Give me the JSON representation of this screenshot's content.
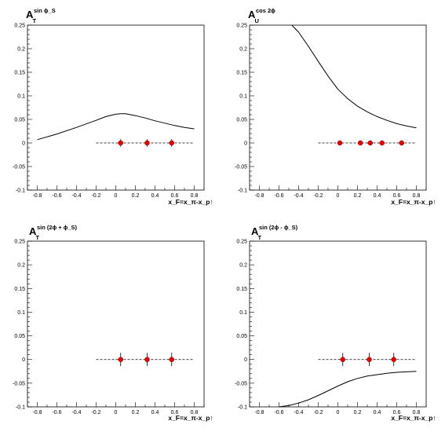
{
  "chart_data": [
    {
      "type": "scatter",
      "title": "",
      "ylabel": "A_T^{sin ϕ_S}",
      "ylabel_main": "A",
      "ylabel_sub": "T",
      "ylabel_sup": "sin ϕ_S",
      "xlabel": "x_F=x_π-x_p↑",
      "xlim": [
        -0.9,
        0.9
      ],
      "ylim": [
        -0.1,
        0.25
      ],
      "xticks": [
        "-0.8",
        "-0.6",
        "-0.4",
        "-0.2",
        "0",
        "0.2",
        "0.4",
        "0.6",
        "0.8"
      ],
      "yticks": [
        "-0.1",
        "-0.05",
        "0",
        "0.05",
        "0.1",
        "0.15",
        "0.2",
        "0.25"
      ],
      "reference_line": {
        "y": 0,
        "x_range": [
          -0.2,
          0.8
        ],
        "style": "dashed"
      },
      "curve": {
        "x": [
          -0.8,
          -0.6,
          -0.4,
          -0.2,
          -0.1,
          0.0,
          0.05,
          0.1,
          0.2,
          0.3,
          0.4,
          0.5,
          0.6,
          0.7,
          0.8
        ],
        "y": [
          0.007,
          0.019,
          0.033,
          0.048,
          0.056,
          0.061,
          0.062,
          0.062,
          0.058,
          0.053,
          0.047,
          0.042,
          0.037,
          0.033,
          0.03
        ]
      },
      "points": {
        "x": [
          0.05,
          0.32,
          0.57
        ],
        "y": [
          0,
          0,
          0
        ],
        "yerr": [
          0.008,
          0.008,
          0.008
        ],
        "xerr": [
          0.02,
          0.02,
          0.02
        ],
        "color": "#e00000"
      }
    },
    {
      "type": "scatter",
      "title": "",
      "ylabel": "A_U^{cos 2ϕ}",
      "ylabel_main": "A",
      "ylabel_sub": "U",
      "ylabel_sup": "cos 2ϕ",
      "xlabel": "x_F=x_π-x_p↑",
      "xlim": [
        -0.9,
        0.9
      ],
      "ylim": [
        -0.1,
        0.25
      ],
      "xticks": [
        "-0.8",
        "-0.6",
        "-0.4",
        "-0.2",
        "0",
        "0.2",
        "0.4",
        "0.6",
        "0.8"
      ],
      "yticks": [
        "-0.1",
        "-0.05",
        "0",
        "0.05",
        "0.1",
        "0.15",
        "0.2",
        "0.25"
      ],
      "reference_line": {
        "y": 0,
        "x_range": [
          -0.2,
          0.8
        ],
        "style": "dashed"
      },
      "curve": {
        "x": [
          -0.47,
          -0.4,
          -0.3,
          -0.2,
          -0.1,
          0.0,
          0.1,
          0.2,
          0.3,
          0.4,
          0.5,
          0.6,
          0.7,
          0.8
        ],
        "y": [
          0.25,
          0.235,
          0.205,
          0.173,
          0.142,
          0.114,
          0.094,
          0.078,
          0.066,
          0.056,
          0.048,
          0.041,
          0.036,
          0.032
        ]
      },
      "points": {
        "x": [
          0.02,
          0.23,
          0.33,
          0.45,
          0.65
        ],
        "y": [
          0,
          0,
          0,
          0,
          0
        ],
        "yerr": [
          0.002,
          0.002,
          0.002,
          0.002,
          0.002
        ],
        "xerr": [
          0.012,
          0.012,
          0.012,
          0.012,
          0.012
        ],
        "color": "#e00000"
      }
    },
    {
      "type": "scatter",
      "title": "",
      "ylabel": "A_T^{sin (2ϕ + ϕ_S)}",
      "ylabel_main": "A",
      "ylabel_sub": "T",
      "ylabel_sup": "sin (2ϕ + ϕ_S)",
      "xlabel": "x_F=x_π-x_p↑",
      "xlim": [
        -0.9,
        0.9
      ],
      "ylim": [
        -0.1,
        0.25
      ],
      "xticks": [
        "-0.8",
        "-0.6",
        "-0.4",
        "-0.2",
        "0",
        "0.2",
        "0.4",
        "0.6",
        "0.8"
      ],
      "yticks": [
        "-0.1",
        "-0.05",
        "0",
        "0.05",
        "0.1",
        "0.15",
        "0.2",
        "0.25"
      ],
      "reference_line": {
        "y": 0,
        "x_range": [
          -0.2,
          0.8
        ],
        "style": "dashed"
      },
      "curve": null,
      "points": {
        "x": [
          0.05,
          0.32,
          0.57
        ],
        "y": [
          0,
          0,
          0
        ],
        "yerr": [
          0.014,
          0.014,
          0.014
        ],
        "xerr": [
          0.02,
          0.02,
          0.02
        ],
        "color": "#e00000"
      }
    },
    {
      "type": "scatter",
      "title": "",
      "ylabel": "A_T^{sin (2ϕ - ϕ_S)}",
      "ylabel_main": "A",
      "ylabel_sub": "T",
      "ylabel_sup": "sin (2ϕ - ϕ_S)",
      "xlabel": "x_F=x_π-x_p↑",
      "xlim": [
        -0.9,
        0.9
      ],
      "ylim": [
        -0.1,
        0.25
      ],
      "xticks": [
        "-0.8",
        "-0.6",
        "-0.4",
        "-0.2",
        "0",
        "0.2",
        "0.4",
        "0.6",
        "0.8"
      ],
      "yticks": [
        "-0.1",
        "-0.05",
        "0",
        "0.05",
        "0.1",
        "0.15",
        "0.2",
        "0.25"
      ],
      "reference_line": {
        "y": 0,
        "x_range": [
          -0.2,
          0.8
        ],
        "style": "dashed"
      },
      "curve": {
        "x": [
          -0.6,
          -0.5,
          -0.4,
          -0.3,
          -0.2,
          -0.1,
          0.0,
          0.1,
          0.2,
          0.3,
          0.4,
          0.5,
          0.6,
          0.7,
          0.8
        ],
        "y": [
          -0.1,
          -0.097,
          -0.092,
          -0.085,
          -0.076,
          -0.066,
          -0.056,
          -0.047,
          -0.04,
          -0.035,
          -0.032,
          -0.029,
          -0.027,
          -0.026,
          -0.025
        ]
      },
      "points": {
        "x": [
          0.05,
          0.32,
          0.57
        ],
        "y": [
          0,
          0,
          0
        ],
        "yerr": [
          0.014,
          0.014,
          0.014
        ],
        "xerr": [
          0.02,
          0.02,
          0.02
        ],
        "color": "#e00000"
      }
    }
  ]
}
